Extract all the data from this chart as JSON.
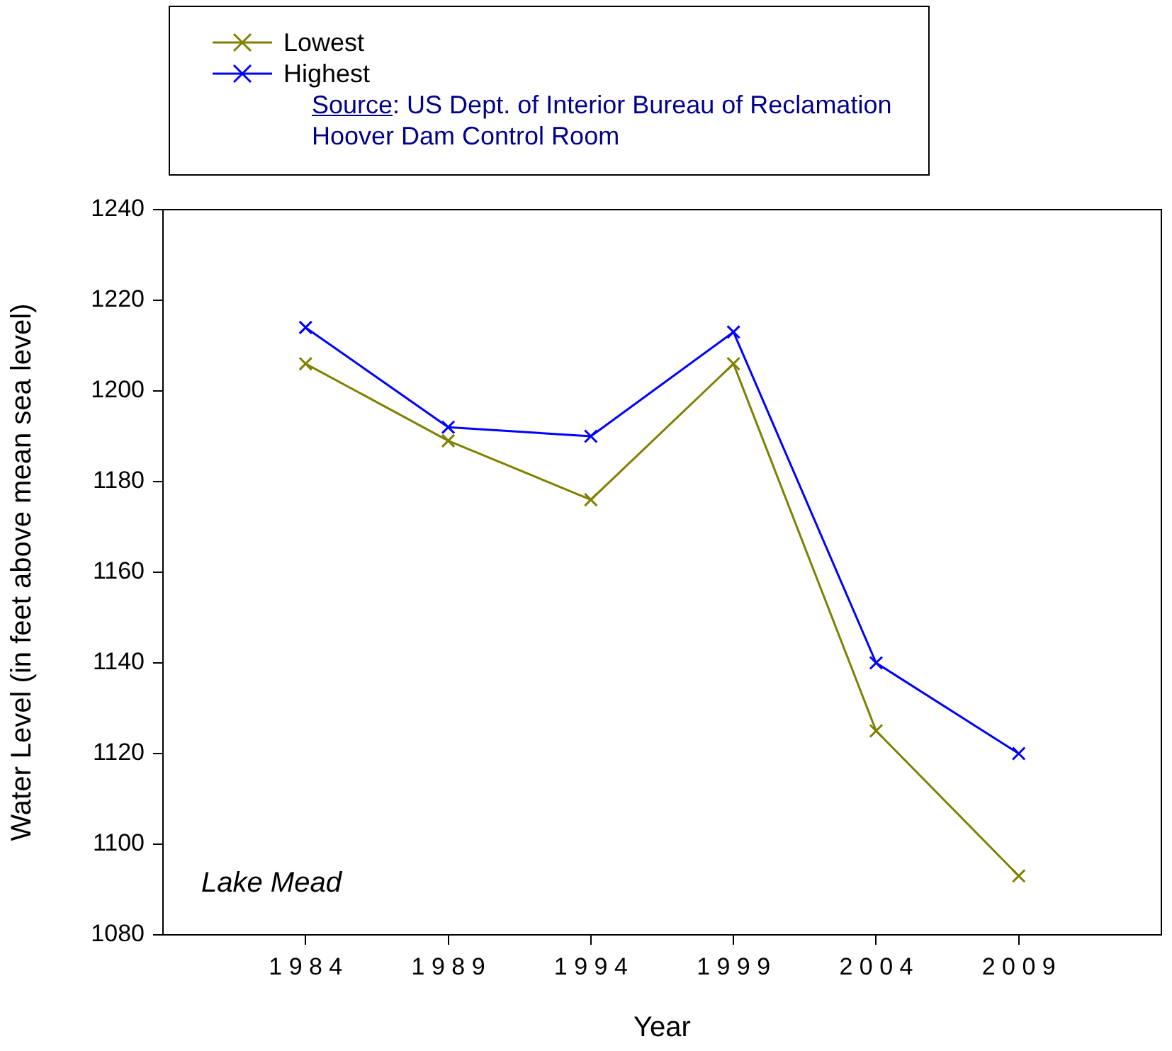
{
  "chart_data": {
    "type": "line",
    "xlabel": "Year",
    "ylabel": "Water Level (in feet above mean sea level)",
    "x": [
      1984,
      1989,
      1994,
      1999,
      2004,
      2009
    ],
    "series": [
      {
        "name": "Lowest",
        "color": "#808000",
        "values": [
          1206,
          1189,
          1176,
          1206,
          1125,
          1093
        ]
      },
      {
        "name": "Highest",
        "color": "#0000ff",
        "values": [
          1214,
          1192,
          1190,
          1213,
          1140,
          1120
        ]
      }
    ],
    "xlim": [
      1979,
      2014
    ],
    "xticks": [
      1984,
      1989,
      1994,
      1999,
      2004,
      2009
    ],
    "ylim": [
      1080,
      1240
    ],
    "yticks": [
      1080,
      1100,
      1120,
      1140,
      1160,
      1180,
      1200,
      1220,
      1240
    ],
    "annotations": [
      "Lake Mead",
      "Source: US Dept. of Interior Bureau of Reclamation Hoover Dam Control Room"
    ],
    "legend": "top",
    "marker": "cross",
    "line_style": "solid",
    "grid": false
  }
}
